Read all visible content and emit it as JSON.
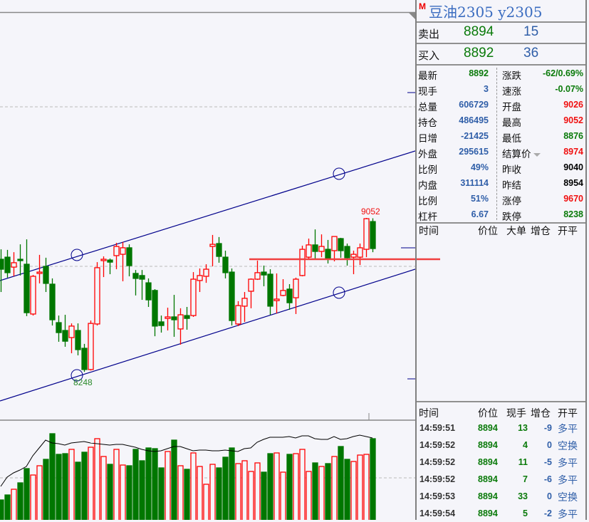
{
  "instrument": {
    "badge": "M",
    "title": "豆油2305  y2305"
  },
  "quote": {
    "ask": {
      "label": "卖出",
      "price": "8894",
      "volume": "15"
    },
    "bid": {
      "label": "买入",
      "price": "8892",
      "volume": "36"
    }
  },
  "stats": [
    {
      "l1": "最新",
      "v1": "8892",
      "c1": "green",
      "l2": "涨跌",
      "v2": "-62/0.69%",
      "c2": "green"
    },
    {
      "l1": "现手",
      "v1": "3",
      "c1": "blue",
      "l2": "速涨",
      "v2": "-0.07%",
      "c2": "green"
    },
    {
      "l1": "总量",
      "v1": "606729",
      "c1": "blue",
      "l2": "开盘",
      "v2": "9026",
      "c2": "red"
    },
    {
      "l1": "持仓",
      "v1": "486495",
      "c1": "blue",
      "l2": "最高",
      "v2": "9052",
      "c2": "red"
    },
    {
      "l1": "日增",
      "v1": "-21425",
      "c1": "blue",
      "l2": "最低",
      "v2": "8876",
      "c2": "green"
    },
    {
      "l1": "外盘",
      "v1": "295615",
      "c1": "blue",
      "l2": "结算价",
      "v2": "8974",
      "c2": "red",
      "dropdown": true
    },
    {
      "l1": "比例",
      "v1": "49%",
      "c1": "blue",
      "l2": "昨收",
      "v2": "9040",
      "c2": "black"
    },
    {
      "l1": "内盘",
      "v1": "311114",
      "c1": "blue",
      "l2": "昨结",
      "v2": "8954",
      "c2": "black"
    },
    {
      "l1": "比例",
      "v1": "51%",
      "c1": "blue",
      "l2": "涨停",
      "v2": "9670",
      "c2": "red"
    },
    {
      "l1": "杠杆",
      "v1": "6.67",
      "c1": "blue",
      "l2": "跌停",
      "v2": "8238",
      "c2": "green"
    }
  ],
  "big_orders": {
    "headers": [
      "时间",
      "价位",
      "大单",
      "增仓",
      "开平"
    ]
  },
  "ticks": {
    "headers": [
      "时间",
      "价位",
      "现手",
      "增仓",
      "开平"
    ],
    "rows": [
      [
        "14:59:51",
        "8894",
        "13",
        "-9",
        "多平"
      ],
      [
        "14:59:52",
        "8894",
        "4",
        "0",
        "空换"
      ],
      [
        "14:59:52",
        "8894",
        "11",
        "-5",
        "多平"
      ],
      [
        "14:59:52",
        "8894",
        "7",
        "-6",
        "多平"
      ],
      [
        "14:59:53",
        "8894",
        "33",
        "0",
        "空换"
      ],
      [
        "14:59:54",
        "8894",
        "5",
        "-2",
        "多平"
      ]
    ]
  },
  "colors": {
    "up": "#ff0000",
    "down": "#007700",
    "channel": "#00008b",
    "support_line": "#f04040",
    "oi_line": "#000000"
  },
  "chart_data": {
    "type": "candlestick",
    "annotations": {
      "high_label": "9052",
      "low_label": "8248"
    },
    "ohlc": [
      [
        8836,
        8888,
        8665,
        8784
      ],
      [
        8847,
        8885,
        8740,
        8766
      ],
      [
        8795,
        8873,
        8747,
        8818
      ],
      [
        8836,
        8914,
        8751,
        8829
      ],
      [
        8810,
        8940,
        8539,
        8557
      ],
      [
        8550,
        8754,
        8542,
        8747
      ],
      [
        8762,
        8859,
        8710,
        8769
      ],
      [
        8799,
        8844,
        8665,
        8710
      ],
      [
        8706,
        8736,
        8490,
        8520
      ],
      [
        8505,
        8542,
        8405,
        8453
      ],
      [
        8464,
        8546,
        8379,
        8408
      ],
      [
        8427,
        8501,
        8345,
        8487
      ],
      [
        8464,
        8501,
        8334,
        8364
      ],
      [
        8371,
        8394,
        8248,
        8260
      ],
      [
        8260,
        8516,
        8255,
        8501
      ],
      [
        8498,
        8821,
        8490,
        8792
      ],
      [
        8829,
        8851,
        8743,
        8836
      ],
      [
        8832,
        8840,
        8758,
        8821
      ],
      [
        8855,
        8922,
        8784,
        8903
      ],
      [
        8862,
        8926,
        8721,
        8896
      ],
      [
        8896,
        8914,
        8747,
        8803
      ],
      [
        8762,
        8780,
        8647,
        8736
      ],
      [
        8751,
        8780,
        8624,
        8732
      ],
      [
        8713,
        8736,
        8587,
        8624
      ],
      [
        8673,
        8680,
        8434,
        8487
      ],
      [
        8509,
        8542,
        8453,
        8490
      ],
      [
        8527,
        8583,
        8464,
        8535
      ],
      [
        8535,
        8650,
        8431,
        8520
      ],
      [
        8472,
        8580,
        8390,
        8546
      ],
      [
        8542,
        8587,
        8468,
        8527
      ],
      [
        8542,
        8769,
        8535,
        8732
      ],
      [
        8725,
        8788,
        8665,
        8751
      ],
      [
        8747,
        8810,
        8713,
        8784
      ],
      [
        8903,
        8963,
        8799,
        8914
      ],
      [
        8918,
        8952,
        8818,
        8851
      ],
      [
        8847,
        8881,
        8736,
        8766
      ],
      [
        8769,
        8788,
        8490,
        8516
      ],
      [
        8498,
        8617,
        8487,
        8594
      ],
      [
        8591,
        8665,
        8509,
        8632
      ],
      [
        8669,
        8736,
        8580,
        8732
      ],
      [
        8732,
        8829,
        8728,
        8766
      ],
      [
        8769,
        8803,
        8695,
        8754
      ],
      [
        8758,
        8784,
        8546,
        8591
      ],
      [
        8620,
        8762,
        8553,
        8628
      ],
      [
        8647,
        8732,
        8643,
        8673
      ],
      [
        8680,
        8706,
        8572,
        8609
      ],
      [
        8635,
        8740,
        8550,
        8732
      ],
      [
        8751,
        8907,
        8747,
        8888
      ],
      [
        8847,
        8944,
        8840,
        8911
      ],
      [
        8911,
        8992,
        8840,
        8877
      ],
      [
        8877,
        8966,
        8847,
        8903
      ],
      [
        8888,
        8937,
        8814,
        8840
      ],
      [
        8881,
        8955,
        8825,
        8955
      ],
      [
        8944,
        8948,
        8844,
        8881
      ],
      [
        8903,
        8918,
        8803,
        8844
      ],
      [
        8847,
        8881,
        8758,
        8862
      ],
      [
        8847,
        8918,
        8806,
        8896
      ],
      [
        8888,
        9052,
        8847,
        9048
      ],
      [
        9033,
        9050,
        8873,
        8892
      ]
    ],
    "volume": [
      28,
      35,
      43,
      52,
      72,
      63,
      76,
      85,
      121,
      92,
      93,
      99,
      81,
      95,
      102,
      114,
      89,
      78,
      99,
      77,
      76,
      99,
      83,
      101,
      100,
      73,
      96,
      112,
      76,
      71,
      94,
      75,
      50,
      78,
      73,
      88,
      101,
      79,
      83,
      68,
      80,
      67,
      93,
      94,
      67,
      92,
      93,
      99,
      68,
      80,
      75,
      79,
      89,
      103,
      85,
      82,
      91,
      92,
      114
    ],
    "open_interest": [
      47,
      60,
      66,
      70,
      75,
      90,
      101,
      112,
      108,
      107,
      105,
      108,
      109,
      110,
      108,
      107,
      106,
      105,
      106,
      106,
      104,
      102,
      99,
      97,
      96,
      97,
      100,
      103,
      103,
      100,
      97,
      98,
      98,
      97,
      97,
      98,
      97,
      96,
      100,
      101,
      109,
      113,
      116,
      116,
      116,
      117,
      115,
      118,
      118,
      114,
      113,
      113,
      117,
      113,
      114,
      117,
      119,
      117,
      115
    ]
  }
}
